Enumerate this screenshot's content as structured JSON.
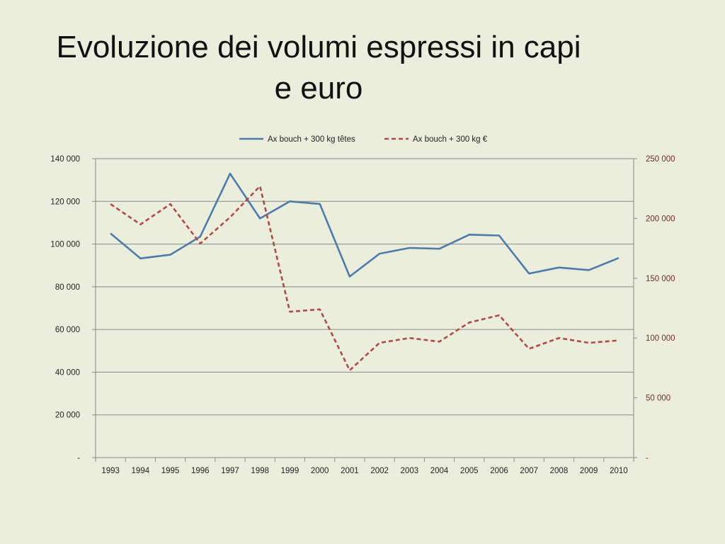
{
  "slide": {
    "title_line1": "Evoluzione dei volumi espressi in capi",
    "title_line2": "e euro"
  },
  "chart_data": {
    "type": "line",
    "categories": [
      "1993",
      "1994",
      "1995",
      "1996",
      "1997",
      "1998",
      "1999",
      "2000",
      "2001",
      "2002",
      "2003",
      "2004",
      "2005",
      "2006",
      "2007",
      "2008",
      "2009",
      "2010"
    ],
    "series": [
      {
        "name": "Ax bouch + 300 kg têtes",
        "axis": "left",
        "color": "#4f7ba9",
        "style": "solid",
        "values": [
          105000,
          93300,
          95000,
          103500,
          133000,
          112000,
          120000,
          118800,
          84800,
          95500,
          98200,
          97800,
          104400,
          104000,
          86200,
          89000,
          87800,
          93500
        ]
      },
      {
        "name": "Ax bouch + 300 kg €",
        "axis": "right",
        "color": "#b04a45",
        "style": "dashed",
        "values": [
          212000,
          195000,
          212000,
          179000,
          201000,
          227000,
          122000,
          124000,
          73000,
          96000,
          100000,
          97000,
          113000,
          119000,
          91000,
          100000,
          96000,
          98000
        ]
      }
    ],
    "y_left": {
      "ylim": [
        0,
        140000
      ],
      "ticks": [
        0,
        20000,
        40000,
        60000,
        80000,
        100000,
        120000,
        140000
      ],
      "tick_labels": [
        "-",
        "20 000",
        "40 000",
        "60 000",
        "80 000",
        "100 000",
        "120 000",
        "140 000"
      ]
    },
    "y_right": {
      "ylim": [
        0,
        250000
      ],
      "ticks": [
        0,
        50000,
        100000,
        150000,
        200000,
        250000
      ],
      "tick_labels": [
        "-",
        "50 000",
        "100 000",
        "150 000",
        "200 000",
        "250 000"
      ],
      "color": "#7a2a26"
    },
    "grid": true,
    "legend": "top-center"
  }
}
